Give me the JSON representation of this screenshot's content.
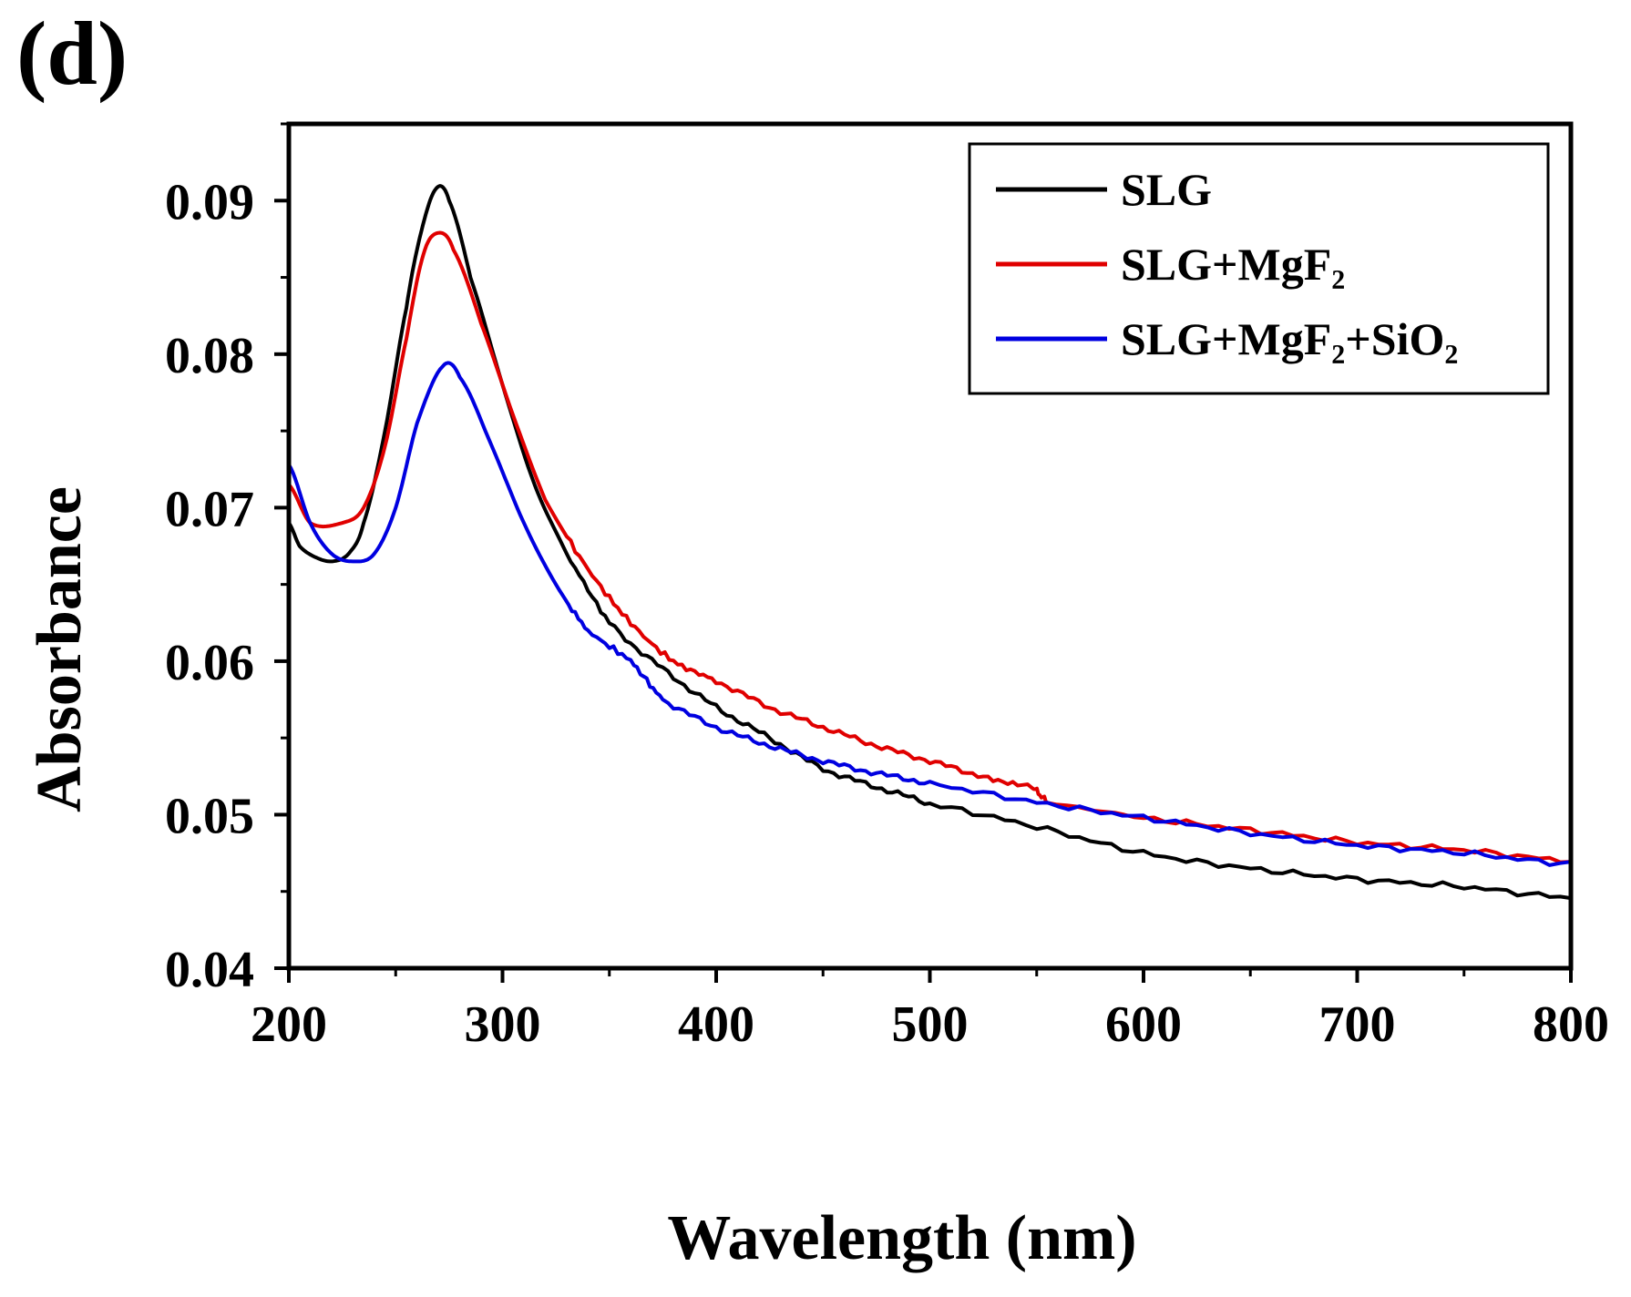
{
  "panel_label": "(d)",
  "chart_data": {
    "type": "line",
    "title": "",
    "xlabel": "Wavelength (nm)",
    "ylabel": "Absorbance",
    "xlim": [
      200,
      800
    ],
    "ylim": [
      0.04,
      0.095
    ],
    "xticks": [
      200,
      300,
      400,
      500,
      600,
      700,
      800
    ],
    "xtick_labels": [
      "200",
      "300",
      "400",
      "500",
      "600",
      "700",
      "800"
    ],
    "yticks": [
      0.04,
      0.05,
      0.06,
      0.07,
      0.08,
      0.09
    ],
    "ytick_labels": [
      "0.04",
      "0.05",
      "0.06",
      "0.07",
      "0.08",
      "0.09"
    ],
    "grid": false,
    "legend_position": "top-right",
    "series": [
      {
        "name": "SLG",
        "color": "#000000",
        "x": [
          200,
          205,
          212,
          220,
          228,
          235,
          245,
          255,
          262,
          269,
          275,
          285,
          300,
          315,
          330,
          350,
          375,
          400,
          425,
          450,
          475,
          500,
          550,
          600,
          650,
          700,
          750,
          800
        ],
        "y": [
          0.069,
          0.0675,
          0.0668,
          0.0665,
          0.067,
          0.069,
          0.075,
          0.083,
          0.088,
          0.0908,
          0.09,
          0.085,
          0.078,
          0.0715,
          0.067,
          0.0625,
          0.0595,
          0.057,
          0.055,
          0.053,
          0.0518,
          0.0507,
          0.0492,
          0.0475,
          0.0465,
          0.0458,
          0.0453,
          0.0446
        ]
      },
      {
        "name": "SLG+MgF₂",
        "color": "#e00000",
        "x": [
          200,
          210,
          225,
          235,
          245,
          255,
          263,
          270,
          277,
          290,
          305,
          320,
          340,
          360,
          380,
          400,
          425,
          450,
          475,
          500,
          525,
          548,
          555,
          600,
          650,
          700,
          750,
          800
        ],
        "y": [
          0.0715,
          0.069,
          0.069,
          0.07,
          0.074,
          0.081,
          0.0865,
          0.0879,
          0.0868,
          0.082,
          0.076,
          0.0705,
          0.066,
          0.0625,
          0.06,
          0.0587,
          0.057,
          0.0557,
          0.0545,
          0.0535,
          0.0525,
          0.0518,
          0.0508,
          0.0498,
          0.049,
          0.0482,
          0.0477,
          0.047
        ]
      },
      {
        "name": "SLG+MgF₂+SiO₂",
        "color": "#0000e0",
        "x": [
          200,
          210,
          220,
          230,
          240,
          250,
          260,
          272,
          280,
          295,
          310,
          325,
          340,
          360,
          375,
          400,
          425,
          450,
          475,
          500,
          550,
          600,
          650,
          700,
          750,
          800
        ],
        "y": [
          0.0728,
          0.069,
          0.067,
          0.0665,
          0.067,
          0.07,
          0.0755,
          0.0792,
          0.0785,
          0.074,
          0.069,
          0.065,
          0.062,
          0.06,
          0.0575,
          0.0557,
          0.0545,
          0.0535,
          0.0527,
          0.052,
          0.0508,
          0.0498,
          0.0488,
          0.048,
          0.0475,
          0.0468
        ]
      }
    ]
  }
}
